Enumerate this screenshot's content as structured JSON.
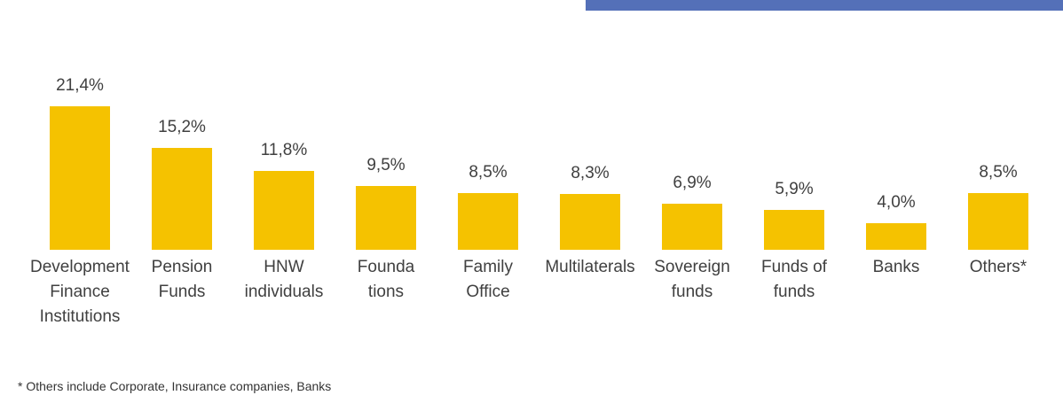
{
  "chart_data": {
    "type": "bar",
    "categories": [
      "Development Finance Institutions",
      "Pension Funds",
      "HNW individuals",
      "Founda tions",
      "Family Office",
      "Multilaterals",
      "Sovereign funds",
      "Funds of funds",
      "Banks",
      "Others*"
    ],
    "values": [
      21.4,
      15.2,
      11.8,
      9.5,
      8.5,
      8.3,
      6.9,
      5.9,
      4.0,
      8.5
    ],
    "value_labels": [
      "21,4%",
      "15,2%",
      "11,8%",
      "9,5%",
      "8,5%",
      "8,3%",
      "6,9%",
      "5,9%",
      "4,0%",
      "8,5%"
    ],
    "color": "#f5c200",
    "footnote": "* Others include Corporate, Insurance companies, Banks"
  }
}
